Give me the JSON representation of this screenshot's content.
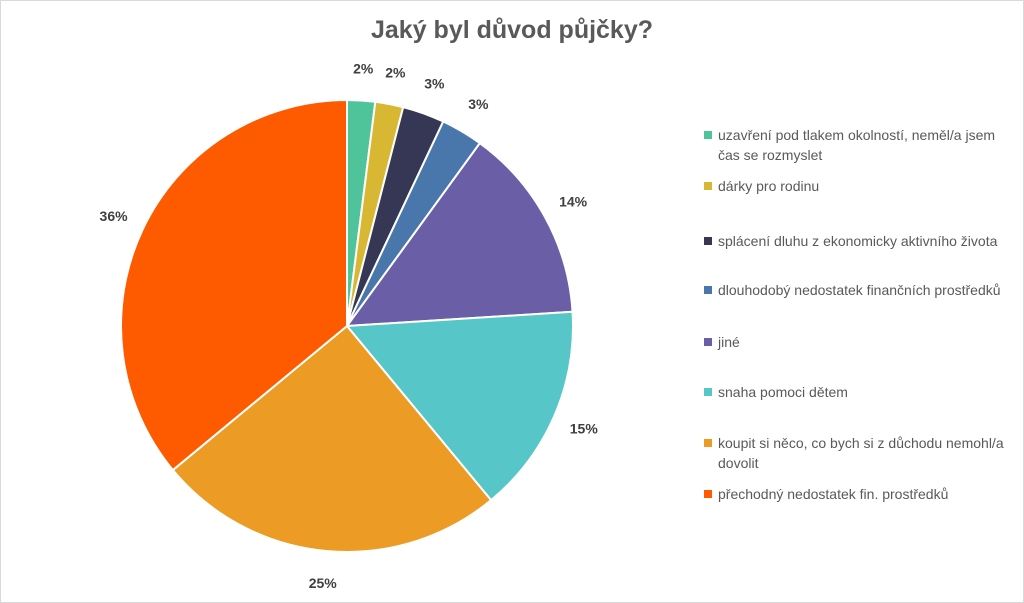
{
  "chart_data": {
    "type": "pie",
    "title": "Jaký byl důvod půjčky?",
    "legend_position": "right",
    "slices": [
      {
        "label": "uzavření pod tlakem okolností, neměl/a jsem čas se rozmyslet",
        "value": 2,
        "value_label": "2%",
        "color": "#4fc49b"
      },
      {
        "label": "dárky pro rodinu",
        "value": 2,
        "value_label": "2%",
        "color": "#d8b832"
      },
      {
        "label": "splácení dluhu z ekonomicky aktivního života",
        "value": 3,
        "value_label": "3%",
        "color": "#363655"
      },
      {
        "label": "dlouhodobý nedostatek finančních prostředků",
        "value": 3,
        "value_label": "3%",
        "color": "#4a77ab"
      },
      {
        "label": "jiné",
        "value": 14,
        "value_label": "14%",
        "color": "#6a5fa6"
      },
      {
        "label": "snaha pomoci dětem",
        "value": 15,
        "value_label": "15%",
        "color": "#56c6c8"
      },
      {
        "label": "koupit si něco, co bych si z důchodu nemohl/a dovolit",
        "value": 25,
        "value_label": "25%",
        "color": "#ec9c24"
      },
      {
        "label": "přechodný nedostatek fin. prostředků",
        "value": 36,
        "value_label": "36%",
        "color": "#fe5b00"
      }
    ]
  }
}
